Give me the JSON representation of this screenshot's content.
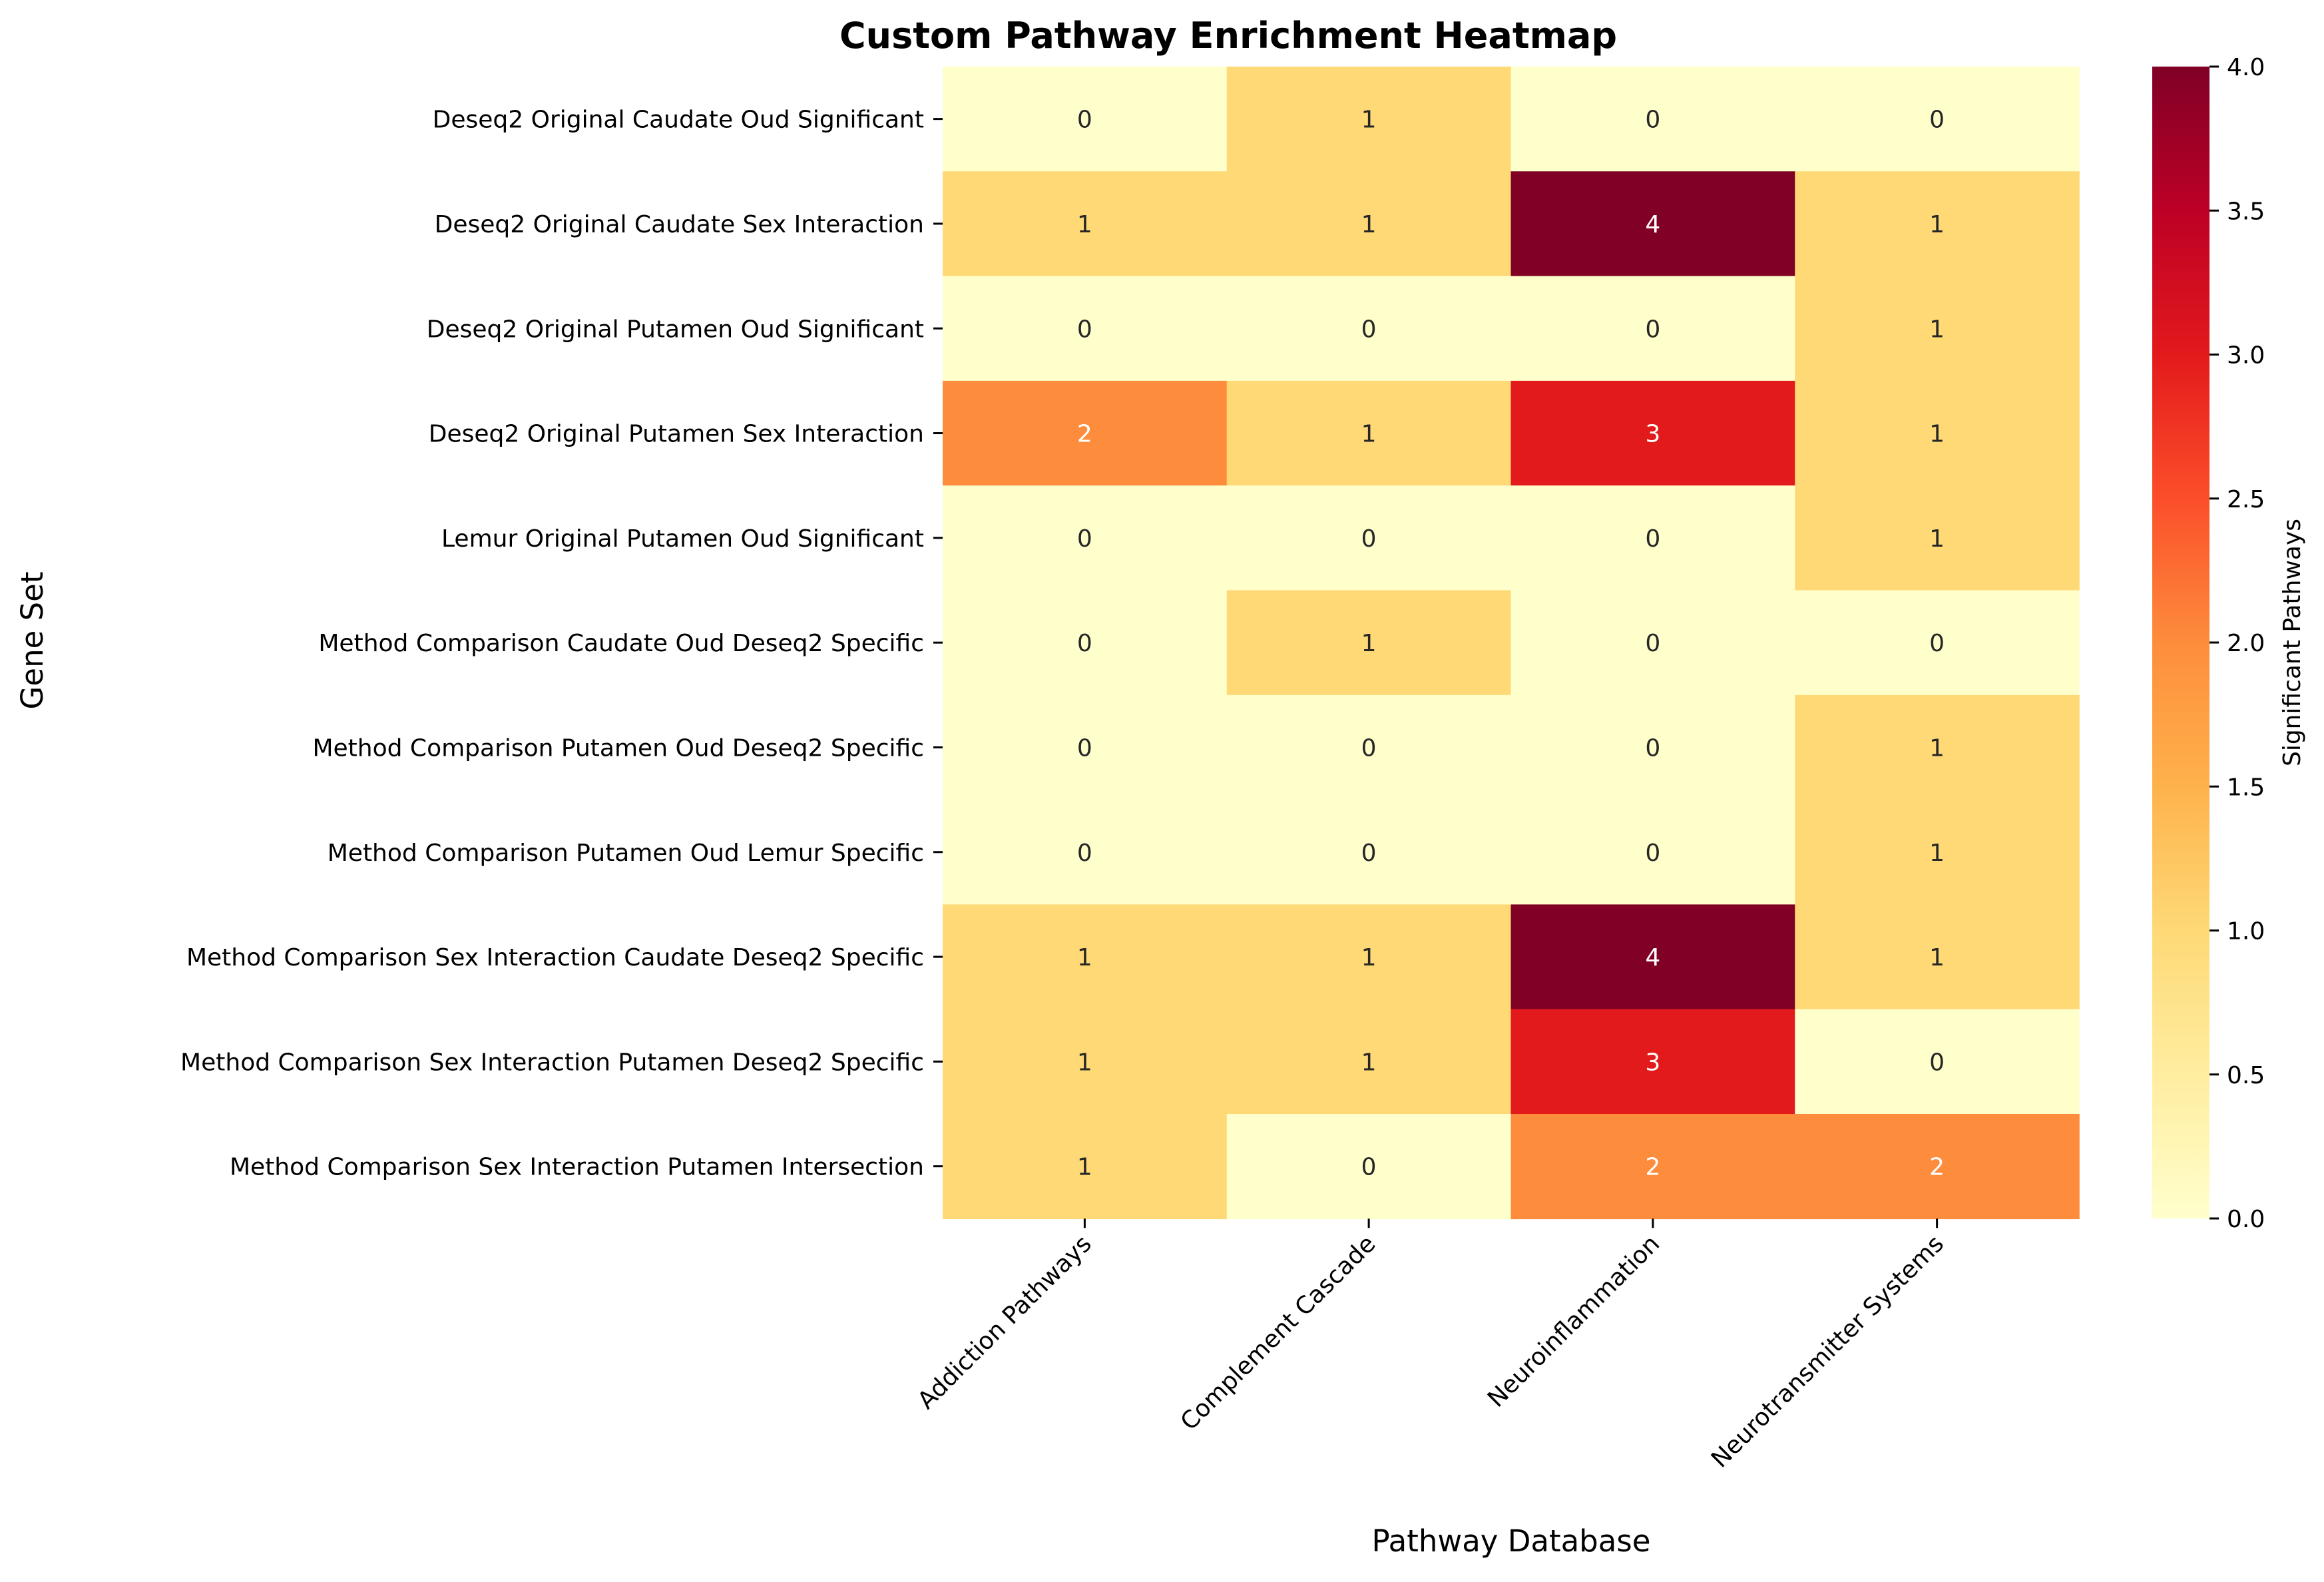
{
  "chart_data": {
    "type": "heatmap",
    "title": "Custom Pathway Enrichment Heatmap",
    "xlabel": "Pathway Database",
    "ylabel": "Gene Set",
    "colorbar_label": "Significant Pathways",
    "colormap": "YlOrRd",
    "vmin": 0,
    "vmax": 4,
    "colorbar_ticks": [
      "0.0",
      "0.5",
      "1.0",
      "1.5",
      "2.0",
      "2.5",
      "3.0",
      "3.5",
      "4.0"
    ],
    "columns": [
      "Addiction Pathways",
      "Complement Cascade",
      "Neuroinflammation",
      "Neurotransmitter Systems"
    ],
    "rows": [
      "Deseq2 Original Caudate Oud Significant",
      "Deseq2 Original Caudate Sex Interaction",
      "Deseq2 Original Putamen Oud Significant",
      "Deseq2 Original Putamen Sex Interaction",
      "Lemur Original Putamen Oud Significant",
      "Method Comparison Caudate Oud Deseq2 Specific",
      "Method Comparison Putamen Oud Deseq2 Specific",
      "Method Comparison Putamen Oud Lemur Specific",
      "Method Comparison Sex Interaction Caudate Deseq2 Specific",
      "Method Comparison Sex Interaction Putamen Deseq2 Specific",
      "Method Comparison Sex Interaction Putamen Intersection"
    ],
    "values": [
      [
        0,
        1,
        0,
        0
      ],
      [
        1,
        1,
        4,
        1
      ],
      [
        0,
        0,
        0,
        1
      ],
      [
        2,
        1,
        3,
        1
      ],
      [
        0,
        0,
        0,
        1
      ],
      [
        0,
        1,
        0,
        0
      ],
      [
        0,
        0,
        0,
        1
      ],
      [
        0,
        0,
        0,
        1
      ],
      [
        1,
        1,
        4,
        1
      ],
      [
        1,
        1,
        3,
        0
      ],
      [
        1,
        0,
        2,
        2
      ]
    ],
    "colors": {
      "0": "#ffffcc",
      "1": "#fed976",
      "2": "#fd8d3c",
      "3": "#e31a1c",
      "4": "#800026"
    },
    "colorbar_stops": [
      "#ffffcc",
      "#ffeda0",
      "#fed976",
      "#feb24c",
      "#fd8d3c",
      "#fc4e2a",
      "#e31a1c",
      "#bd0026",
      "#800026"
    ]
  }
}
